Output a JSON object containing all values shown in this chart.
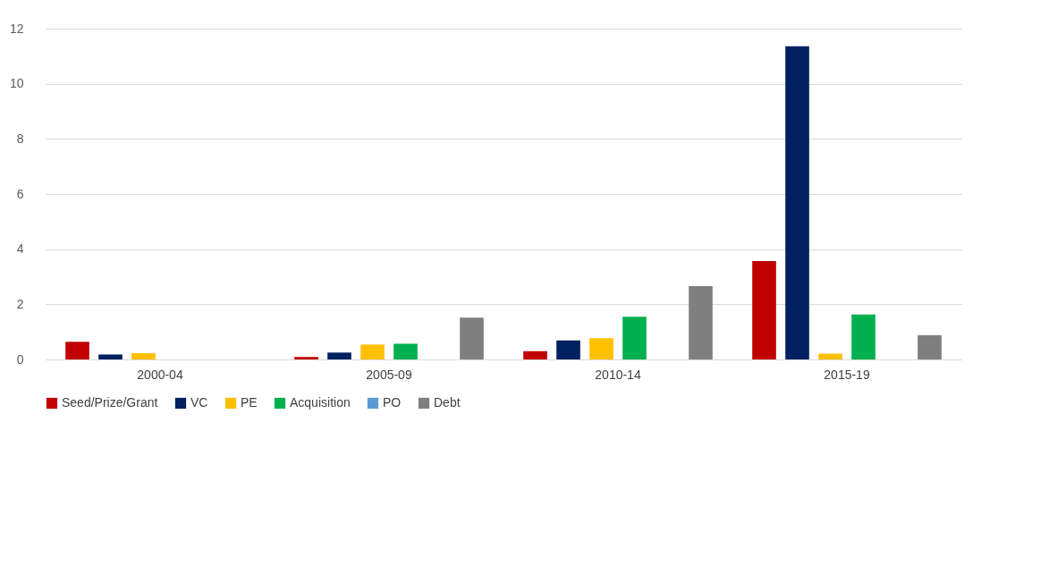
{
  "chart_data": {
    "type": "bar",
    "categories": [
      "2000-04",
      "2005-09",
      "2010-14",
      "2015-19"
    ],
    "series": [
      {
        "name": "Seed/Prize/Grant",
        "color": "#c00000",
        "values": [
          0.64,
          0.09,
          0.3,
          3.57
        ]
      },
      {
        "name": "VC",
        "color": "#002060",
        "values": [
          0.18,
          0.25,
          0.69,
          11.36
        ]
      },
      {
        "name": "PE",
        "color": "#ffc000",
        "values": [
          0.23,
          0.54,
          0.77,
          0.21
        ]
      },
      {
        "name": "Acquisition",
        "color": "#00b050",
        "values": [
          null,
          0.57,
          1.55,
          1.63
        ]
      },
      {
        "name": "PO",
        "color": "#5b9bd5",
        "values": [
          null,
          null,
          null,
          null
        ]
      },
      {
        "name": "Debt",
        "color": "#7f7f7f",
        "values": [
          null,
          1.52,
          2.66,
          0.88
        ]
      }
    ],
    "ylim": [
      0,
      12
    ],
    "yticks": [
      0,
      2,
      4,
      6,
      8,
      10,
      12
    ],
    "grid": "y",
    "legend": "bottom"
  }
}
